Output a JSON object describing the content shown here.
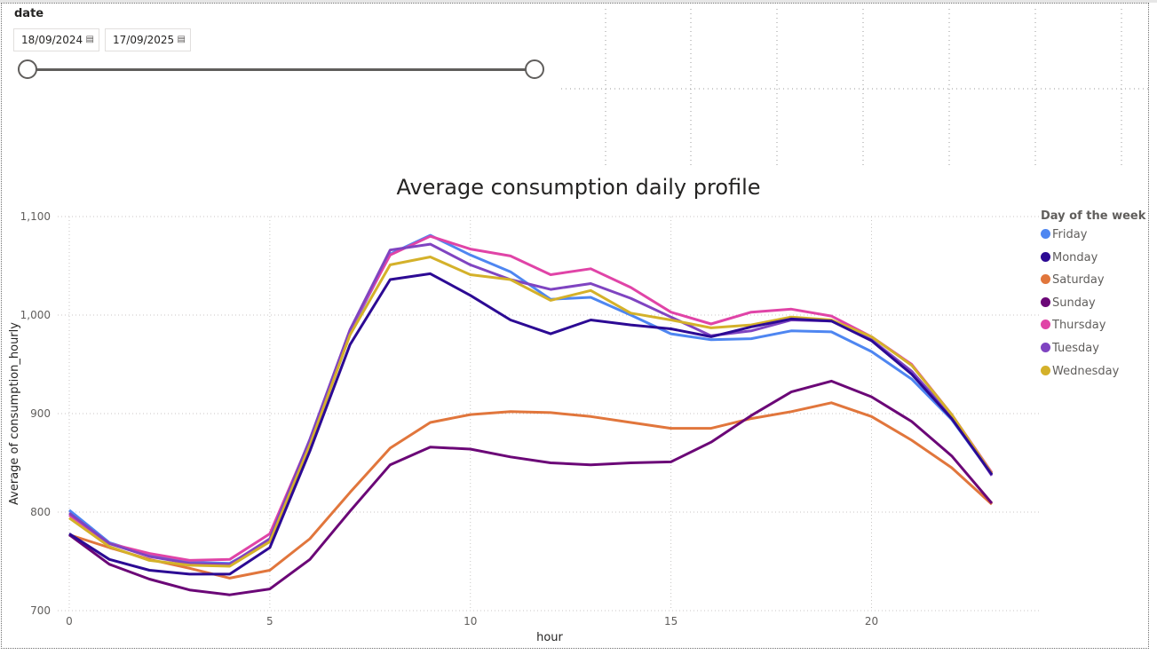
{
  "slicer": {
    "title": "date",
    "start_date": "18/09/2024",
    "end_date": "17/09/2025",
    "calendar_icon": "calendar-icon"
  },
  "colors": {
    "Friday": "#4e86f1",
    "Monday": "#2c0a94",
    "Saturday": "#e1763c",
    "Sunday": "#6b0777",
    "Thursday": "#e044a7",
    "Tuesday": "#7f44c1",
    "Wednesday": "#d4b12a"
  },
  "chart_data": {
    "type": "line",
    "title": "Average consumption daily profile",
    "xlabel": "hour",
    "ylabel": "Average of consumption_hourly",
    "xlim": [
      0,
      23
    ],
    "ylim": [
      700,
      1100
    ],
    "x_ticks": [
      "0",
      "5",
      "10",
      "15",
      "20"
    ],
    "y_ticks": [
      "700",
      "800",
      "900",
      "1,000",
      "1,100"
    ],
    "legend_title": "Day of the week",
    "legend_position": "right",
    "grid": true,
    "x": [
      0,
      1,
      2,
      3,
      4,
      5,
      6,
      7,
      8,
      9,
      10,
      11,
      12,
      13,
      14,
      15,
      16,
      17,
      18,
      19,
      20,
      21,
      22,
      23
    ],
    "series": [
      {
        "name": "Friday",
        "values": [
          802,
          769,
          756,
          749,
          748,
          770,
          869,
          983,
          1062,
          1081,
          1061,
          1044,
          1016,
          1018,
          1000,
          981,
          975,
          976,
          984,
          983,
          963,
          935,
          894,
          838
        ]
      },
      {
        "name": "Monday",
        "values": [
          778,
          752,
          741,
          737,
          737,
          764,
          862,
          970,
          1036,
          1042,
          1020,
          995,
          981,
          995,
          990,
          986,
          978,
          988,
          996,
          994,
          974,
          940,
          895,
          838
        ]
      },
      {
        "name": "Saturday",
        "values": [
          777,
          764,
          752,
          743,
          733,
          741,
          773,
          820,
          865,
          891,
          899,
          902,
          901,
          897,
          891,
          885,
          885,
          895,
          902,
          911,
          897,
          873,
          845,
          808
        ]
      },
      {
        "name": "Sunday",
        "values": [
          777,
          747,
          732,
          721,
          716,
          722,
          752,
          801,
          848,
          866,
          864,
          856,
          850,
          848,
          850,
          851,
          871,
          898,
          922,
          933,
          917,
          892,
          857,
          809
        ]
      },
      {
        "name": "Thursday",
        "values": [
          797,
          768,
          758,
          751,
          752,
          778,
          873,
          985,
          1061,
          1080,
          1067,
          1060,
          1041,
          1047,
          1028,
          1003,
          991,
          1003,
          1006,
          999,
          978,
          950,
          899,
          840
        ]
      },
      {
        "name": "Tuesday",
        "values": [
          799,
          768,
          755,
          748,
          747,
          773,
          874,
          985,
          1066,
          1072,
          1051,
          1036,
          1026,
          1032,
          1017,
          998,
          979,
          984,
          995,
          994,
          975,
          943,
          897,
          837
        ]
      },
      {
        "name": "Wednesday",
        "values": [
          794,
          765,
          751,
          746,
          745,
          770,
          868,
          980,
          1051,
          1059,
          1041,
          1036,
          1015,
          1025,
          1002,
          995,
          987,
          990,
          998,
          995,
          978,
          949,
          899,
          839
        ]
      }
    ]
  }
}
